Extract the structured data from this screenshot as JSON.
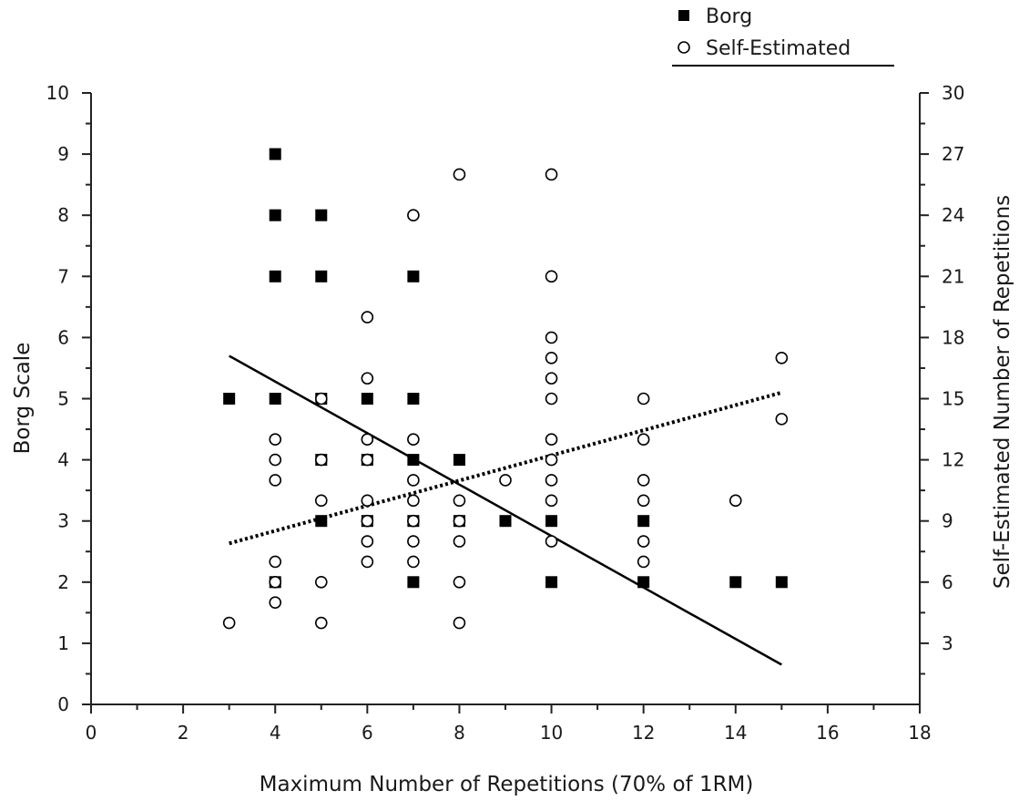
{
  "chart_data": {
    "type": "scatter",
    "xlabel": "Maximum Number of Repetitions (70% of 1RM)",
    "ylabel": "Borg Scale",
    "y2label": "Self-Estimated Number of Repetitions",
    "xlim": [
      0,
      18
    ],
    "ylim": [
      0,
      10
    ],
    "y2lim": [
      0,
      30
    ],
    "x_ticks": [
      0,
      2,
      4,
      6,
      8,
      10,
      12,
      14,
      16,
      18
    ],
    "y_ticks": [
      0,
      1,
      2,
      3,
      4,
      5,
      6,
      7,
      8,
      9,
      10
    ],
    "y2_ticks": [
      3,
      6,
      9,
      12,
      15,
      18,
      21,
      24,
      27,
      30
    ],
    "grid": false,
    "legend_position": "top-right",
    "series": [
      {
        "name": "Borg",
        "marker": "filled-square",
        "axis": "left",
        "points": [
          [
            3,
            5
          ],
          [
            4,
            9
          ],
          [
            4,
            8
          ],
          [
            4,
            7
          ],
          [
            4,
            5
          ],
          [
            4,
            2
          ],
          [
            5,
            8
          ],
          [
            5,
            7
          ],
          [
            5,
            5
          ],
          [
            5,
            4
          ],
          [
            5,
            3
          ],
          [
            6,
            5
          ],
          [
            6,
            4
          ],
          [
            6,
            3
          ],
          [
            7,
            7
          ],
          [
            7,
            5
          ],
          [
            7,
            4
          ],
          [
            7,
            3
          ],
          [
            7,
            2
          ],
          [
            8,
            4
          ],
          [
            8,
            3
          ],
          [
            9,
            3
          ],
          [
            10,
            3
          ],
          [
            10,
            2
          ],
          [
            12,
            3
          ],
          [
            12,
            2
          ],
          [
            14,
            2
          ],
          [
            15,
            2
          ]
        ],
        "fit_line": [
          [
            3,
            5.7
          ],
          [
            15,
            0.65
          ]
        ]
      },
      {
        "name": "Self-Estimated",
        "marker": "open-circle",
        "axis": "right",
        "points": [
          [
            3,
            4
          ],
          [
            4,
            13
          ],
          [
            4,
            12
          ],
          [
            4,
            11
          ],
          [
            4,
            7
          ],
          [
            4,
            6
          ],
          [
            4,
            5
          ],
          [
            5,
            15
          ],
          [
            5,
            12
          ],
          [
            5,
            10
          ],
          [
            5,
            6
          ],
          [
            5,
            4
          ],
          [
            6,
            19
          ],
          [
            6,
            16
          ],
          [
            6,
            13
          ],
          [
            6,
            12
          ],
          [
            6,
            10
          ],
          [
            6,
            9
          ],
          [
            6,
            8
          ],
          [
            6,
            7
          ],
          [
            7,
            24
          ],
          [
            7,
            13
          ],
          [
            7,
            11
          ],
          [
            7,
            10
          ],
          [
            7,
            9
          ],
          [
            7,
            8
          ],
          [
            7,
            7
          ],
          [
            8,
            26
          ],
          [
            8,
            10
          ],
          [
            8,
            9
          ],
          [
            8,
            8
          ],
          [
            8,
            6
          ],
          [
            8,
            4
          ],
          [
            9,
            11
          ],
          [
            10,
            26
          ],
          [
            10,
            21
          ],
          [
            10,
            18
          ],
          [
            10,
            17
          ],
          [
            10,
            16
          ],
          [
            10,
            15
          ],
          [
            10,
            13
          ],
          [
            10,
            12
          ],
          [
            10,
            11
          ],
          [
            10,
            10
          ],
          [
            10,
            8
          ],
          [
            12,
            15
          ],
          [
            12,
            13
          ],
          [
            12,
            11
          ],
          [
            12,
            10
          ],
          [
            12,
            8
          ],
          [
            12,
            7
          ],
          [
            14,
            10
          ],
          [
            15,
            17
          ],
          [
            15,
            14
          ]
        ],
        "fit_line": [
          [
            3,
            7.9
          ],
          [
            15,
            15.3
          ]
        ]
      }
    ]
  }
}
